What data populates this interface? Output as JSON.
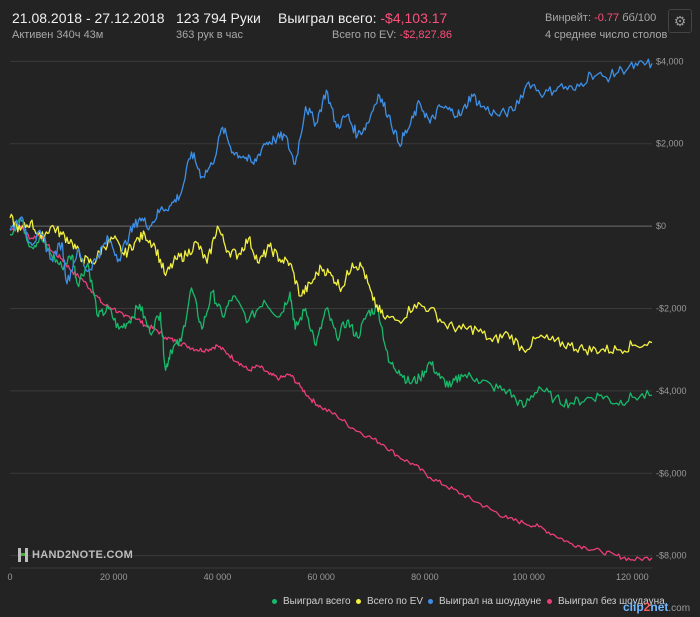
{
  "header": {
    "date_range": "21.08.2018 - 27.12.2018",
    "active_time": "Активен 340ч 43м",
    "hands": "123 794 Руки",
    "hands_per_hour": "363 рук в час",
    "won_total_label": "Выиграл всего:",
    "won_total_value": "-$4,103.17",
    "ev_total_label": "Всего по EV:",
    "ev_total_value": "-$2,827.86",
    "winrate_label": "Винрейт:",
    "winrate_value": "-0.77",
    "winrate_unit": "бб/100",
    "tables": "4 среднее число столов",
    "settings_icon": "gear-icon"
  },
  "logo_text": "HAND2NOTE.COM",
  "watermark": {
    "a": "clip",
    "b": "2",
    "c": "net",
    "d": ".com"
  },
  "colors": {
    "background": "#232323",
    "grid": "#3a3a3a",
    "zero_line": "#6e6e6e",
    "won_total": "#17b96a",
    "ev_total": "#f2f040",
    "showdown": "#3d8fe6",
    "non_showdown": "#ec3d7a"
  },
  "chart_data": {
    "type": "line",
    "xlim": [
      0,
      123794
    ],
    "ylim": [
      -8300,
      4300
    ],
    "x_ticks": [
      0,
      20000,
      40000,
      60000,
      80000,
      100000,
      120000
    ],
    "x_tick_labels": [
      "0",
      "20 000",
      "40 000",
      "60 000",
      "80 000",
      "100 000",
      "120 000"
    ],
    "y_ticks": [
      4000,
      2000,
      0,
      -2000,
      -4000,
      -6000,
      -8000
    ],
    "y_tick_labels": [
      "$4,000",
      "$2,000",
      "$0",
      "-$2,000",
      "-$4,000",
      "-$6,000",
      "-$8,000"
    ],
    "grid": true,
    "legend_position": "bottom-center",
    "series": [
      {
        "name": "Выиграл всего",
        "color_key": "won_total",
        "x": [
          0,
          2000,
          4000,
          6000,
          8000,
          10000,
          12000,
          13000,
          15000,
          17000,
          19000,
          21000,
          23000,
          25000,
          27000,
          29000,
          30000,
          31000,
          33000,
          35000,
          37000,
          39000,
          41000,
          43000,
          46000,
          49000,
          52000,
          54000,
          55000,
          57000,
          59000,
          61000,
          63000,
          65000,
          67000,
          69000,
          71000,
          73000,
          75000,
          77000,
          79000,
          81000,
          83000,
          85000,
          87000,
          90000,
          93000,
          96000,
          99000,
          102000,
          105000,
          108000,
          111000,
          114000,
          117000,
          120000,
          123794
        ],
        "y": [
          -200,
          200,
          -500,
          -300,
          -700,
          -1000,
          -700,
          -1400,
          -900,
          -2200,
          -2000,
          -2500,
          -2300,
          -1900,
          -2600,
          -2100,
          -3500,
          -3000,
          -2800,
          -1500,
          -2500,
          -1600,
          -2200,
          -1700,
          -2300,
          -1800,
          -2200,
          -1600,
          -2500,
          -2000,
          -2900,
          -2000,
          -2700,
          -2300,
          -2700,
          -2100,
          -2000,
          -3300,
          -3500,
          -3800,
          -3700,
          -3300,
          -3700,
          -3900,
          -3600,
          -3700,
          -3900,
          -4000,
          -4400,
          -3900,
          -4200,
          -4300,
          -4200,
          -4100,
          -4300,
          -4150,
          -4103
        ]
      },
      {
        "name": "Всего по EV",
        "color_key": "ev_total",
        "x": [
          0,
          2000,
          4000,
          6000,
          8000,
          10000,
          12000,
          14000,
          16000,
          18000,
          20000,
          22000,
          24000,
          26000,
          28000,
          30000,
          32000,
          34000,
          36000,
          38000,
          40000,
          42000,
          44000,
          46000,
          48000,
          50000,
          52000,
          54000,
          56000,
          58000,
          60000,
          62000,
          64000,
          66000,
          68000,
          70000,
          72000,
          75000,
          78000,
          81000,
          84000,
          87000,
          90000,
          93000,
          96000,
          99000,
          102000,
          105000,
          108000,
          111000,
          114000,
          117000,
          120000,
          123794
        ],
        "y": [
          200,
          -100,
          100,
          -300,
          0,
          -200,
          -400,
          -800,
          -900,
          -500,
          -300,
          -700,
          -400,
          -200,
          -500,
          -1200,
          -800,
          -700,
          -400,
          -900,
          0,
          -600,
          -700,
          -300,
          -900,
          -500,
          -800,
          -900,
          -1700,
          -1400,
          -1000,
          -1200,
          -1500,
          -900,
          -1000,
          -1800,
          -2200,
          -2300,
          -1900,
          -2000,
          -2400,
          -2500,
          -2500,
          -2800,
          -2600,
          -3000,
          -2700,
          -2800,
          -2900,
          -3000,
          -3000,
          -3000,
          -2900,
          -2828
        ]
      },
      {
        "name": "Выиграл на шоудауне",
        "color_key": "showdown",
        "x": [
          0,
          2000,
          4000,
          6000,
          8000,
          10000,
          11000,
          13000,
          15000,
          17000,
          19000,
          21000,
          23000,
          25000,
          27000,
          29000,
          31000,
          33000,
          35000,
          37000,
          39000,
          41000,
          43000,
          45000,
          47000,
          49000,
          51000,
          53000,
          55000,
          57000,
          59000,
          61000,
          63000,
          65000,
          67000,
          69000,
          71000,
          73000,
          75000,
          77000,
          79000,
          81000,
          83000,
          85000,
          87000,
          89000,
          91000,
          94000,
          97000,
          100000,
          103000,
          106000,
          109000,
          112000,
          115000,
          118000,
          121000,
          123794
        ],
        "y": [
          -100,
          200,
          -400,
          -200,
          -800,
          -400,
          -1400,
          -600,
          -1100,
          -700,
          -300,
          -800,
          -200,
          200,
          0,
          400,
          500,
          800,
          1800,
          1200,
          1500,
          2400,
          1800,
          1700,
          1500,
          2000,
          2100,
          2200,
          1500,
          2900,
          2500,
          3300,
          2400,
          2700,
          2200,
          2500,
          3200,
          2700,
          2000,
          2400,
          3000,
          2500,
          2900,
          2800,
          2700,
          3200,
          2900,
          2700,
          2800,
          3500,
          3200,
          3400,
          3300,
          3700,
          3600,
          3800,
          3900,
          3950
        ]
      },
      {
        "name": "Выиграл без шоудауна",
        "color_key": "non_showdown",
        "x": [
          0,
          2000,
          4000,
          6000,
          8000,
          10000,
          12000,
          14000,
          16000,
          18000,
          20000,
          22000,
          24000,
          26000,
          28000,
          30000,
          32000,
          34000,
          36000,
          38000,
          40000,
          42000,
          44000,
          46000,
          48000,
          50000,
          52000,
          54000,
          56000,
          58000,
          60000,
          63000,
          66000,
          69000,
          72000,
          75000,
          78000,
          81000,
          84000,
          87000,
          90000,
          93000,
          96000,
          99000,
          102000,
          105000,
          108000,
          111000,
          114000,
          117000,
          120000,
          123794
        ],
        "y": [
          -100,
          0,
          -300,
          -200,
          -600,
          -800,
          -1100,
          -1300,
          -1600,
          -1900,
          -2000,
          -2200,
          -2200,
          -2400,
          -2500,
          -2700,
          -2800,
          -2900,
          -3000,
          -3000,
          -2900,
          -3100,
          -3300,
          -3500,
          -3400,
          -3600,
          -3700,
          -3600,
          -3900,
          -4200,
          -4400,
          -4600,
          -4900,
          -5100,
          -5300,
          -5600,
          -5800,
          -6100,
          -6300,
          -6500,
          -6700,
          -6900,
          -7100,
          -7200,
          -7300,
          -7500,
          -7700,
          -7800,
          -7900,
          -8000,
          -8100,
          -8050
        ]
      }
    ]
  }
}
